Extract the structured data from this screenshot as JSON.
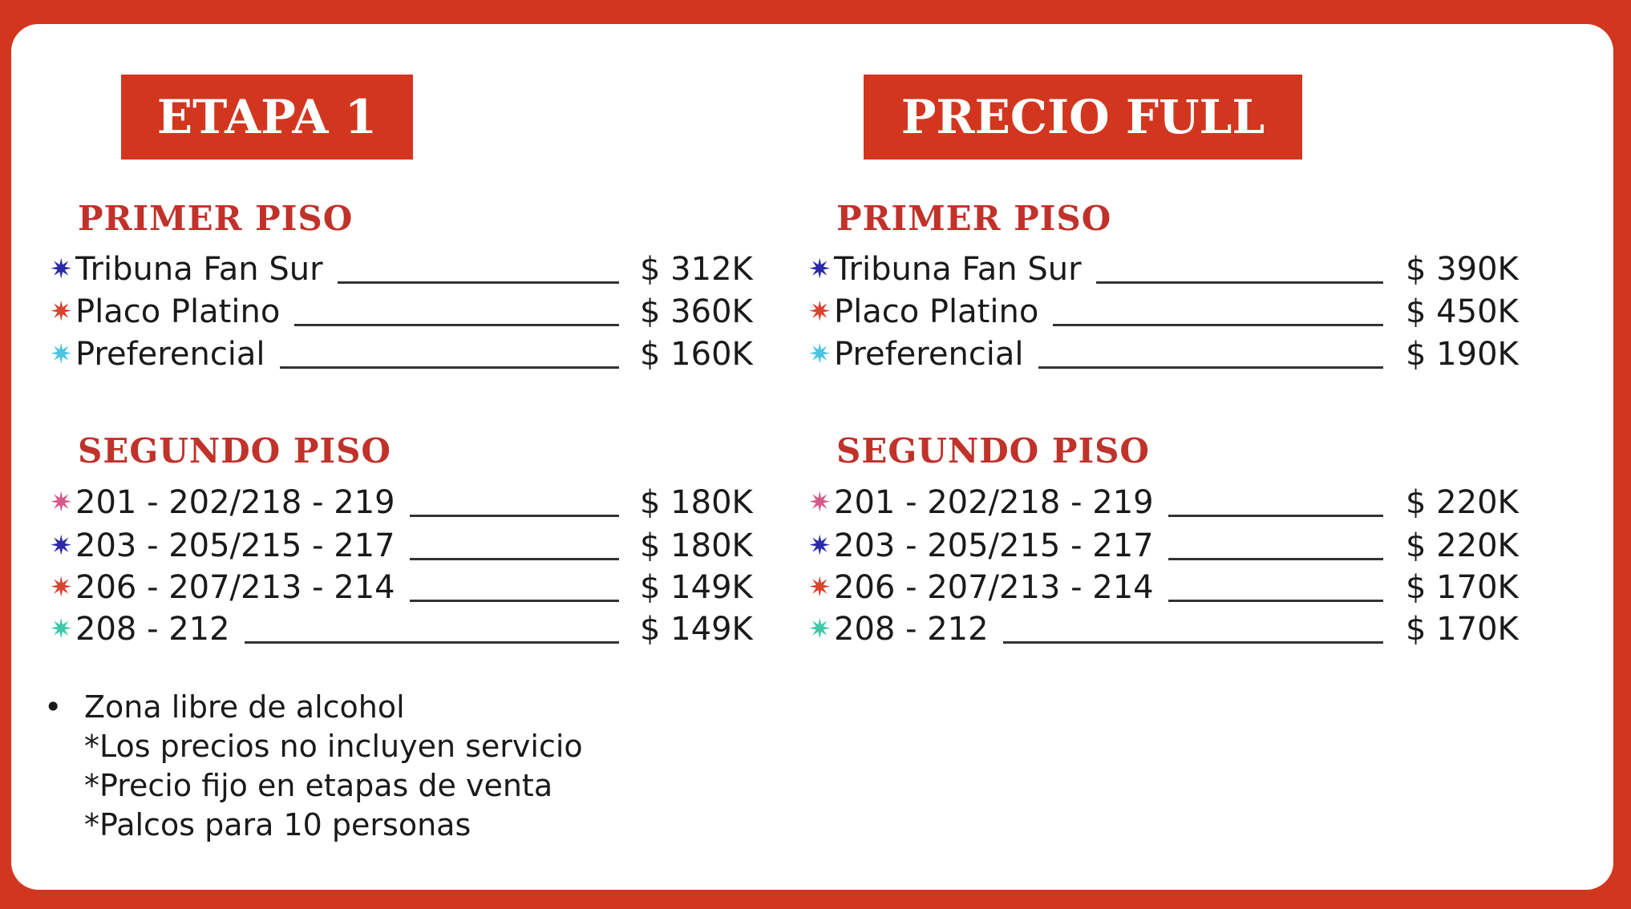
{
  "columns": [
    {
      "title": "ETAPA 1",
      "sections": [
        {
          "heading": "PRIMER PISO",
          "rows": [
            {
              "label": "Tribuna Fan Sur",
              "price": "$ 312K",
              "star_color": "#2a2aa8"
            },
            {
              "label": "Placo Platino",
              "price": "$ 360K",
              "star_color": "#d9442e"
            },
            {
              "label": "Preferencial",
              "price": "$ 160K",
              "star_color": "#4cc3e0"
            }
          ]
        },
        {
          "heading": "SEGUNDO PISO",
          "rows": [
            {
              "label": "201 - 202/218 - 219",
              "price": "$ 180K",
              "star_color": "#d45a8a"
            },
            {
              "label": "203 - 205/215 - 217",
              "price": "$ 180K",
              "star_color": "#2a2aa8"
            },
            {
              "label": "206 - 207/213 - 214",
              "price": "$ 149K",
              "star_color": "#d9442e"
            },
            {
              "label": "208 - 212",
              "price": "$ 149K",
              "star_color": "#3fc9a8"
            }
          ]
        }
      ]
    },
    {
      "title": "PRECIO FULL",
      "sections": [
        {
          "heading": "PRIMER PISO",
          "rows": [
            {
              "label": "Tribuna Fan Sur",
              "price": "$ 390K",
              "star_color": "#2a2aa8"
            },
            {
              "label": "Placo Platino",
              "price": "$ 450K",
              "star_color": "#d9442e"
            },
            {
              "label": "Preferencial",
              "price": "$ 190K",
              "star_color": "#4cc3e0"
            }
          ]
        },
        {
          "heading": "SEGUNDO PISO",
          "rows": [
            {
              "label": "201 - 202/218 - 219",
              "price": "$ 220K",
              "star_color": "#d45a8a"
            },
            {
              "label": "203 - 205/215 - 217",
              "price": "$ 220K",
              "star_color": "#2a2aa8"
            },
            {
              "label": "206 - 207/213 - 214",
              "price": "$ 170K",
              "star_color": "#d9442e"
            },
            {
              "label": "208 - 212",
              "price": "$ 170K",
              "star_color": "#3fc9a8"
            }
          ]
        }
      ]
    }
  ],
  "notes": {
    "bullet": "•",
    "lines": [
      "Zona libre de alcohol",
      "*Los precios no incluyen servicio",
      "*Precio fijo en etapas de venta",
      "*Palcos para 10 personas"
    ]
  },
  "colors": {
    "brand_red": "#d3361f",
    "heading_red": "#c0322a"
  },
  "icons": {
    "row_marker": "asterisk-star-icon"
  }
}
